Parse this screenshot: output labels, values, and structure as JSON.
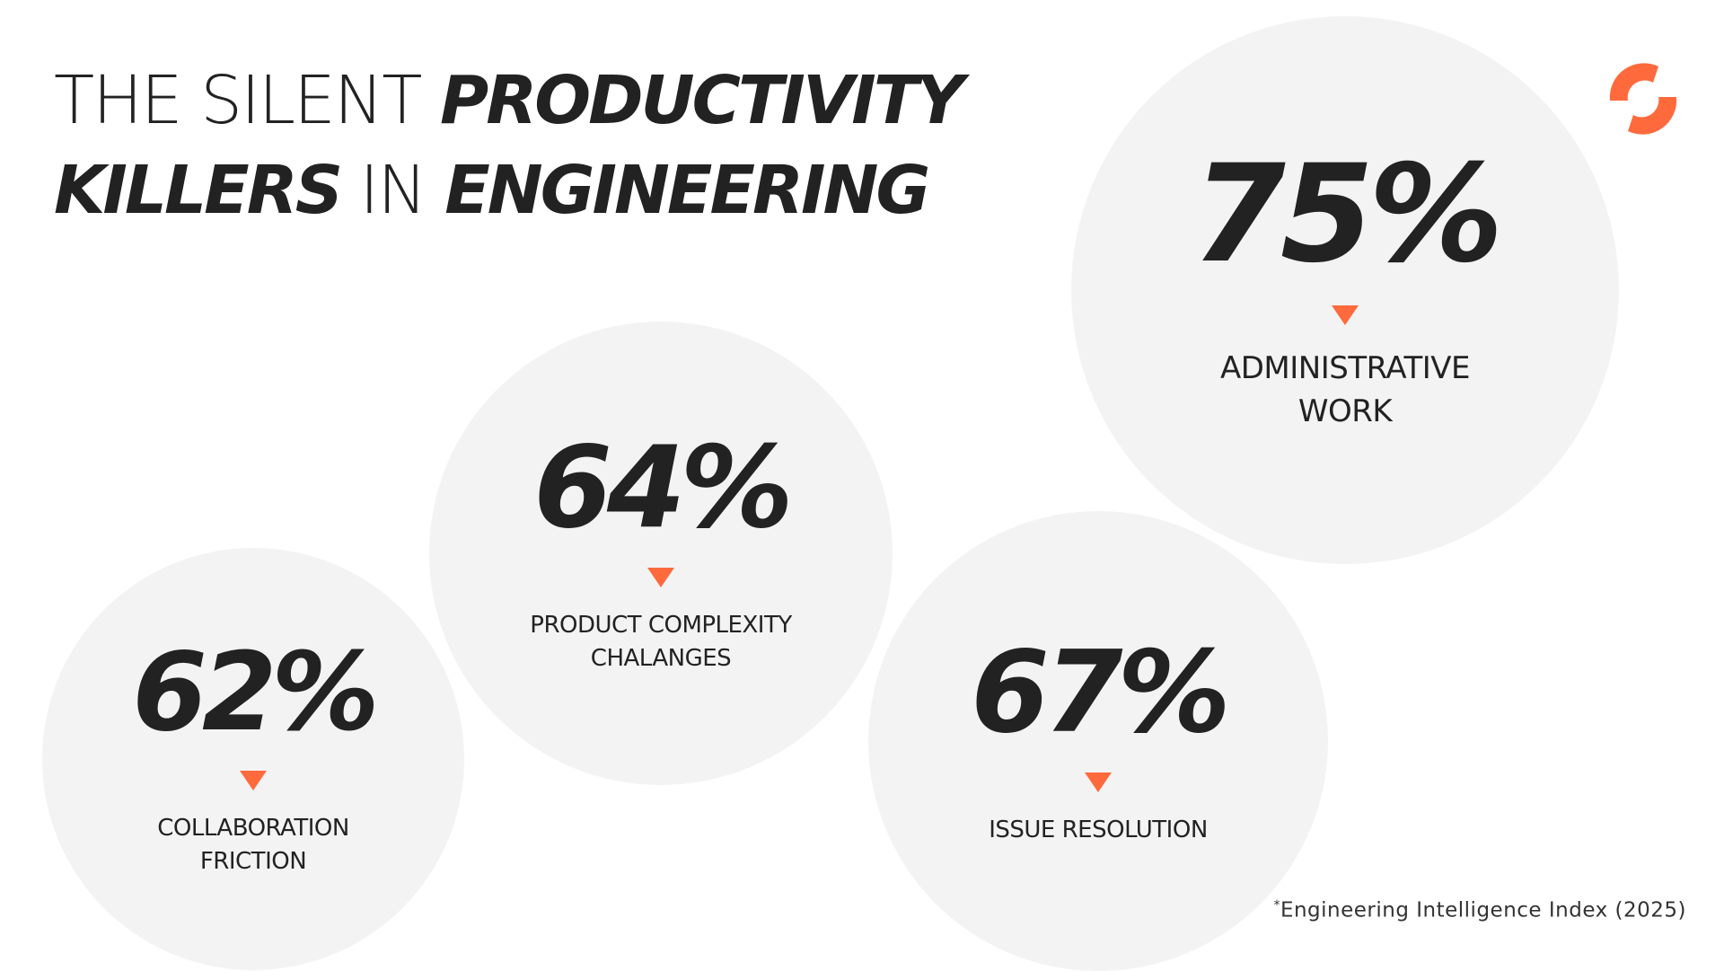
{
  "title": {
    "line1_light": "THE SILENT ",
    "line1_bold": "PRODUCTIVITY",
    "line2_bold_a": "KILLERS",
    "line2_light": " IN ",
    "line2_bold_b": "ENGINEERING"
  },
  "logo": {
    "icon": "brand-logo-icon",
    "color": "#ff6a3d"
  },
  "stats": [
    {
      "value": "75%",
      "label": "ADMINISTRATIVE\nWORK"
    },
    {
      "value": "64%",
      "label": "PRODUCT COMPLEXITY\nCHALANGES"
    },
    {
      "value": "67%",
      "label": "ISSUE RESOLUTION"
    },
    {
      "value": "62%",
      "label": "COLLABORATION\nFRICTION"
    }
  ],
  "accent_color": "#ff6a3d",
  "bubble_color": "#f3f3f3",
  "footnote": {
    "marker": "*",
    "text": "Engineering Intelligence Index (2025)"
  }
}
